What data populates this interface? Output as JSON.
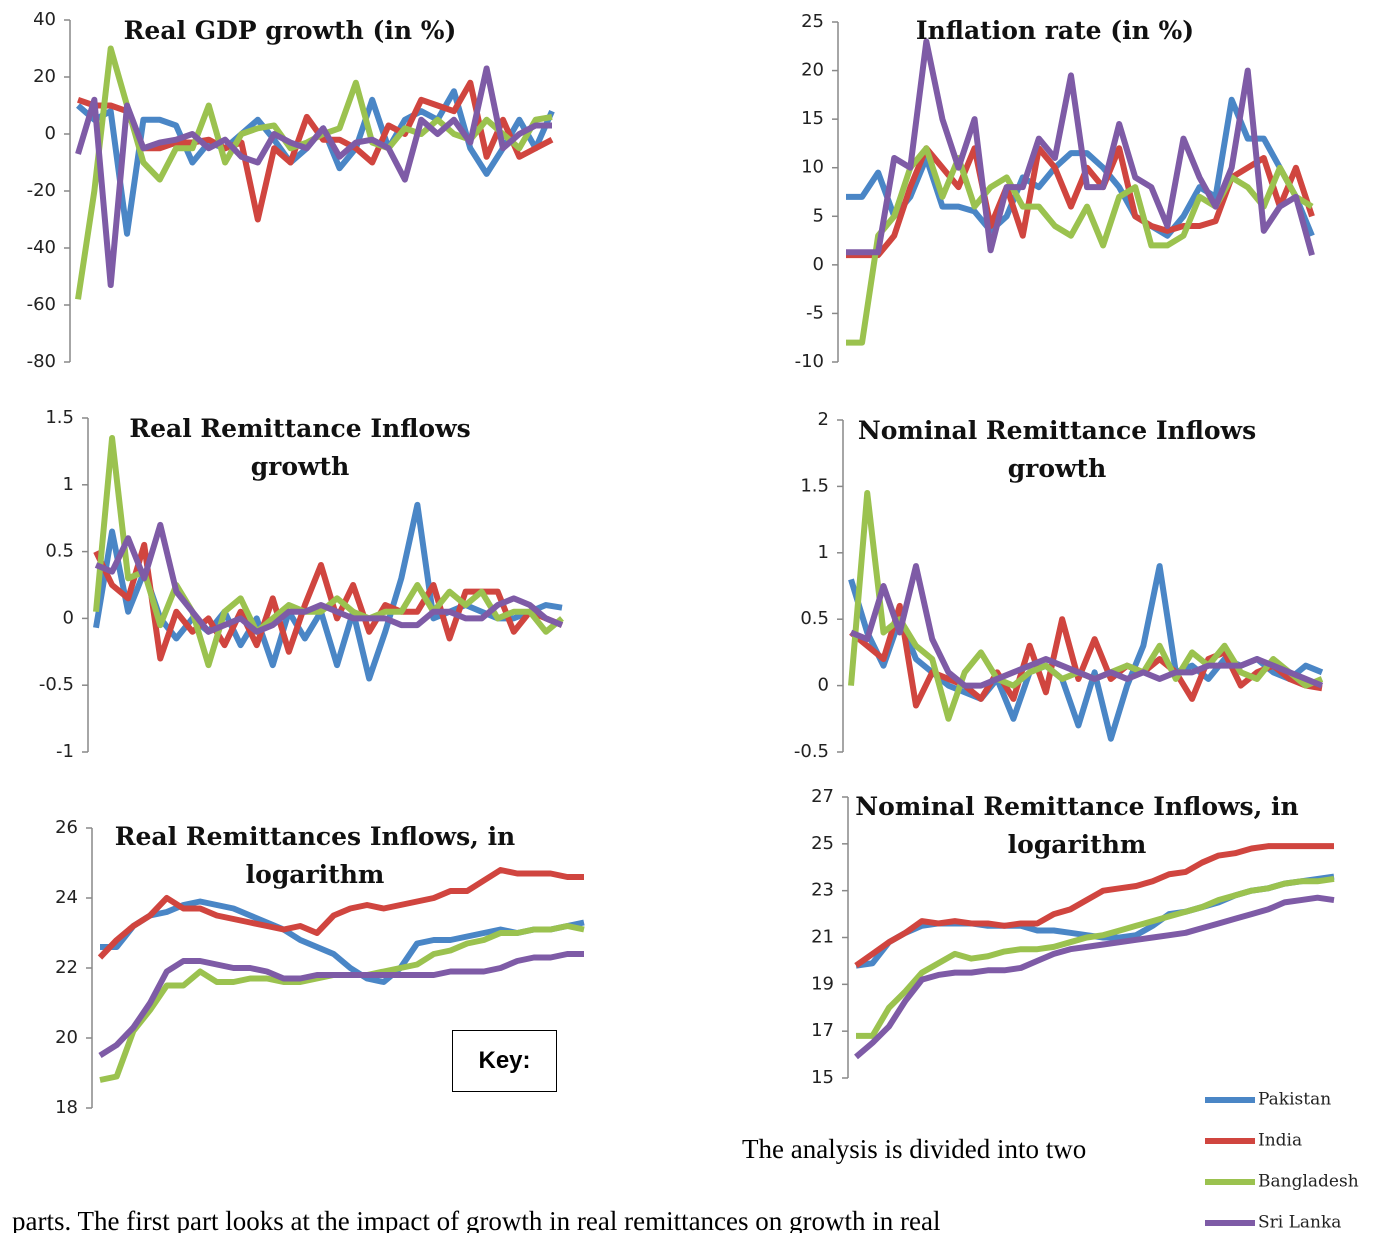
{
  "chart_data": [
    {
      "type": "line",
      "title": "Real GDP growth (in %)",
      "ylim": [
        -80,
        40
      ],
      "yticks": [
        -80,
        -60,
        -40,
        -20,
        0,
        20,
        40
      ],
      "series": [
        {
          "name": "Pakistan",
          "color": "#4a86c6",
          "values": [
            10,
            5,
            8,
            -35,
            5,
            5,
            3,
            -10,
            -3,
            -5,
            0,
            5,
            -2,
            -10,
            -5,
            2,
            -12,
            -5,
            12,
            -5,
            5,
            8,
            5,
            15,
            -5,
            -14,
            -5,
            5,
            -5,
            8
          ]
        },
        {
          "name": "India",
          "color": "#d0453f",
          "values": [
            12,
            10,
            10,
            8,
            -5,
            -5,
            -3,
            -3,
            -2,
            -5,
            -3,
            -30,
            -5,
            -10,
            6,
            -2,
            -2,
            -5,
            -10,
            3,
            0,
            12,
            10,
            8,
            18,
            -8,
            5,
            -8,
            -5,
            -2
          ]
        },
        {
          "name": "Bangladesh",
          "color": "#9bc24f",
          "values": [
            -58,
            -20,
            30,
            10,
            -10,
            -16,
            -5,
            -5,
            10,
            -10,
            0,
            2,
            3,
            -5,
            -3,
            0,
            2,
            18,
            -3,
            -5,
            2,
            0,
            5,
            0,
            -2,
            5,
            0,
            -5,
            5,
            6
          ]
        },
        {
          "name": "Sri Lanka",
          "color": "#7e5ba6",
          "values": [
            -7,
            12,
            -53,
            10,
            -5,
            -3,
            -2,
            0,
            -5,
            -2,
            -8,
            -10,
            0,
            -3,
            -5,
            2,
            -8,
            -3,
            -2,
            -5,
            -16,
            5,
            0,
            5,
            -3,
            23,
            -5,
            0,
            3,
            3
          ]
        }
      ]
    },
    {
      "type": "line",
      "title": "Inflation rate (in %)",
      "ylim": [
        -10,
        25
      ],
      "yticks": [
        -10,
        -5,
        0,
        5,
        10,
        15,
        20,
        25
      ],
      "series": [
        {
          "name": "Pakistan",
          "color": "#4a86c6",
          "values": [
            7,
            7,
            9.5,
            5,
            7,
            11,
            6,
            6,
            5.5,
            3.5,
            5,
            9,
            8,
            10,
            11.5,
            11.5,
            10,
            8,
            5,
            4,
            3,
            5,
            8,
            7,
            17,
            13,
            13,
            10,
            7,
            3
          ]
        },
        {
          "name": "India",
          "color": "#d0453f",
          "values": [
            1,
            1,
            1,
            3,
            8,
            12,
            10,
            8,
            12,
            4,
            8,
            3,
            12,
            10,
            6,
            10,
            8,
            12,
            5,
            4,
            3.5,
            4,
            4,
            4.5,
            9,
            10,
            11,
            6,
            10,
            5
          ]
        },
        {
          "name": "Bangladesh",
          "color": "#9bc24f",
          "values": [
            -8,
            -8,
            3,
            5,
            10,
            12,
            7,
            11,
            6,
            8,
            9,
            6,
            6,
            4,
            3,
            6,
            2,
            7,
            8,
            2,
            2,
            3,
            7,
            6,
            9,
            8,
            6,
            10,
            7,
            6
          ]
        },
        {
          "name": "Sri Lanka",
          "color": "#7e5ba6",
          "values": [
            1.3,
            1.3,
            1.3,
            11,
            10,
            23,
            15,
            10,
            15,
            1.5,
            8,
            8,
            13,
            11,
            19.5,
            8,
            8,
            14.5,
            9,
            8,
            4,
            13,
            9,
            6,
            10,
            20,
            3.5,
            6,
            7,
            1
          ]
        }
      ]
    },
    {
      "type": "line",
      "title": "Real Remittance Inflows growth",
      "ylim": [
        -1,
        1.5
      ],
      "yticks": [
        -1,
        -0.5,
        0,
        0.5,
        1,
        1.5
      ],
      "series": [
        {
          "name": "Pakistan",
          "color": "#4a86c6",
          "values": [
            -0.07,
            0.65,
            0.05,
            0.35,
            0,
            -0.15,
            0,
            -0.1,
            0.05,
            -0.2,
            0,
            -0.35,
            0.05,
            -0.15,
            0.05,
            -0.35,
            0.05,
            -0.45,
            -0.1,
            0.3,
            0.85,
            0,
            0.05,
            0.1,
            0.05,
            0,
            0,
            0.05,
            0.1,
            0.08
          ]
        },
        {
          "name": "India",
          "color": "#d0453f",
          "values": [
            0.5,
            0.25,
            0.15,
            0.55,
            -0.3,
            0.05,
            -0.1,
            0,
            -0.2,
            0.05,
            -0.2,
            0.15,
            -0.25,
            0.1,
            0.4,
            0,
            0.25,
            -0.1,
            0.1,
            0.05,
            0.05,
            0.25,
            -0.15,
            0.2,
            0.2,
            0.2,
            -0.1,
            0.05,
            0,
            -0.05
          ]
        },
        {
          "name": "Bangladesh",
          "color": "#9bc24f",
          "values": [
            0.05,
            1.35,
            0.3,
            0.35,
            -0.05,
            0.25,
            0.05,
            -0.35,
            0.05,
            0.15,
            -0.1,
            0,
            0.1,
            0.05,
            0.05,
            0.15,
            0.05,
            0,
            0.05,
            0.05,
            0.25,
            0.05,
            0.2,
            0.1,
            0.2,
            0,
            0.05,
            0.05,
            -0.1,
            0
          ]
        },
        {
          "name": "Sri Lanka",
          "color": "#7e5ba6",
          "values": [
            0.4,
            0.35,
            0.6,
            0.3,
            0.7,
            0.2,
            0.05,
            -0.1,
            -0.05,
            0,
            -0.1,
            -0.05,
            0.05,
            0.05,
            0.1,
            0.05,
            0,
            0,
            0,
            -0.05,
            -0.05,
            0.05,
            0.05,
            0,
            0,
            0.1,
            0.15,
            0.1,
            0,
            -0.05
          ]
        }
      ]
    },
    {
      "type": "line",
      "title": "Nominal Remittance Inflows growth",
      "ylim": [
        -0.5,
        2
      ],
      "yticks": [
        -0.5,
        0,
        0.5,
        1,
        1.5,
        2
      ],
      "series": [
        {
          "name": "Pakistan",
          "color": "#4a86c6",
          "values": [
            0.8,
            0.4,
            0.15,
            0.5,
            0.2,
            0.1,
            0,
            -0.05,
            -0.1,
            0.05,
            -0.25,
            0.1,
            0.15,
            0.05,
            -0.3,
            0.1,
            -0.4,
            0,
            0.3,
            0.9,
            0.1,
            0.15,
            0.05,
            0.2,
            0.15,
            0.2,
            0.1,
            0.05,
            0.15,
            0.1
          ]
        },
        {
          "name": "India",
          "color": "#d0453f",
          "values": [
            0.4,
            0.3,
            0.2,
            0.6,
            -0.15,
            0.1,
            0.05,
            0,
            -0.1,
            0.1,
            -0.1,
            0.3,
            -0.05,
            0.5,
            0.05,
            0.35,
            0.05,
            0.15,
            0.1,
            0.2,
            0.1,
            -0.1,
            0.2,
            0.25,
            0,
            0.1,
            0.15,
            0.05,
            0,
            -0.02
          ]
        },
        {
          "name": "Bangladesh",
          "color": "#9bc24f",
          "values": [
            0,
            1.45,
            0.4,
            0.5,
            0.3,
            0.2,
            -0.25,
            0.1,
            0.25,
            0.05,
            0,
            0.1,
            0.15,
            0.05,
            0.1,
            0.05,
            0.1,
            0.15,
            0.1,
            0.3,
            0.05,
            0.25,
            0.15,
            0.3,
            0.1,
            0.05,
            0.2,
            0.1,
            0,
            0.05
          ]
        },
        {
          "name": "Sri Lanka",
          "color": "#7e5ba6",
          "values": [
            0.4,
            0.35,
            0.75,
            0.4,
            0.9,
            0.35,
            0.1,
            0,
            0,
            0.05,
            0.1,
            0.15,
            0.2,
            0.15,
            0.1,
            0.05,
            0.1,
            0.05,
            0.1,
            0.05,
            0.1,
            0.1,
            0.15,
            0.15,
            0.15,
            0.2,
            0.15,
            0.1,
            0.05,
            0
          ]
        }
      ]
    },
    {
      "type": "line",
      "title": "Real Remittances Inflows, in logarithm",
      "ylim": [
        18,
        26
      ],
      "yticks": [
        18,
        20,
        22,
        24,
        26
      ],
      "series": [
        {
          "name": "Pakistan",
          "color": "#4a86c6",
          "values": [
            22.6,
            22.6,
            23.2,
            23.5,
            23.6,
            23.8,
            23.9,
            23.8,
            23.7,
            23.5,
            23.3,
            23.1,
            22.8,
            22.6,
            22.4,
            22,
            21.7,
            21.6,
            22,
            22.7,
            22.8,
            22.8,
            22.9,
            23,
            23.1,
            23,
            23.1,
            23.1,
            23.2,
            23.3
          ]
        },
        {
          "name": "India",
          "color": "#d0453f",
          "values": [
            22.3,
            22.8,
            23.2,
            23.5,
            24,
            23.7,
            23.7,
            23.5,
            23.4,
            23.3,
            23.2,
            23.1,
            23.2,
            23,
            23.5,
            23.7,
            23.8,
            23.7,
            23.8,
            23.9,
            24,
            24.2,
            24.2,
            24.5,
            24.8,
            24.7,
            24.7,
            24.7,
            24.6,
            24.6
          ]
        },
        {
          "name": "Bangladesh",
          "color": "#9bc24f",
          "values": [
            18.8,
            18.9,
            20.2,
            20.8,
            21.5,
            21.5,
            21.9,
            21.6,
            21.6,
            21.7,
            21.7,
            21.6,
            21.6,
            21.7,
            21.8,
            21.8,
            21.8,
            21.9,
            22,
            22.1,
            22.4,
            22.5,
            22.7,
            22.8,
            23,
            23,
            23.1,
            23.1,
            23.2,
            23.1
          ]
        },
        {
          "name": "Sri Lanka",
          "color": "#7e5ba6",
          "values": [
            19.5,
            19.8,
            20.3,
            21,
            21.9,
            22.2,
            22.2,
            22.1,
            22,
            22,
            21.9,
            21.7,
            21.7,
            21.8,
            21.8,
            21.8,
            21.8,
            21.8,
            21.8,
            21.8,
            21.8,
            21.9,
            21.9,
            21.9,
            22,
            22.2,
            22.3,
            22.3,
            22.4,
            22.4
          ]
        }
      ]
    },
    {
      "type": "line",
      "title": "Nominal Remittance Inflows, in logarithm",
      "ylim": [
        15,
        27
      ],
      "yticks": [
        15,
        17,
        19,
        21,
        23,
        25,
        27
      ],
      "series": [
        {
          "name": "Pakistan",
          "color": "#4a86c6",
          "values": [
            19.8,
            19.9,
            20.8,
            21.2,
            21.5,
            21.6,
            21.6,
            21.6,
            21.5,
            21.5,
            21.5,
            21.3,
            21.3,
            21.2,
            21.1,
            21,
            21,
            21.1,
            21.5,
            22,
            22.1,
            22.3,
            22.5,
            22.8,
            23,
            23.1,
            23.3,
            23.4,
            23.5,
            23.6
          ]
        },
        {
          "name": "India",
          "color": "#d0453f",
          "values": [
            19.8,
            20.3,
            20.8,
            21.2,
            21.7,
            21.6,
            21.7,
            21.6,
            21.6,
            21.5,
            21.6,
            21.6,
            22,
            22.2,
            22.6,
            23,
            23.1,
            23.2,
            23.4,
            23.7,
            23.8,
            24.2,
            24.5,
            24.6,
            24.8,
            24.9,
            24.9,
            24.9,
            24.9,
            24.9
          ]
        },
        {
          "name": "Bangladesh",
          "color": "#9bc24f",
          "values": [
            16.8,
            16.8,
            18,
            18.7,
            19.5,
            19.9,
            20.3,
            20.1,
            20.2,
            20.4,
            20.5,
            20.5,
            20.6,
            20.8,
            21,
            21.1,
            21.3,
            21.5,
            21.7,
            21.9,
            22.1,
            22.3,
            22.6,
            22.8,
            23,
            23.1,
            23.3,
            23.4,
            23.4,
            23.5
          ]
        },
        {
          "name": "Sri Lanka",
          "color": "#7e5ba6",
          "values": [
            15.9,
            16.5,
            17.2,
            18.3,
            19.2,
            19.4,
            19.5,
            19.5,
            19.6,
            19.6,
            19.7,
            20,
            20.3,
            20.5,
            20.6,
            20.7,
            20.8,
            20.9,
            21,
            21.1,
            21.2,
            21.4,
            21.6,
            21.8,
            22,
            22.2,
            22.5,
            22.6,
            22.7,
            22.6
          ]
        }
      ]
    }
  ],
  "key_label": "Key:",
  "body_text": [
    "The analysis is divided into two",
    "parts. The first part looks at the impact of growth in real remittances on growth in real"
  ]
}
